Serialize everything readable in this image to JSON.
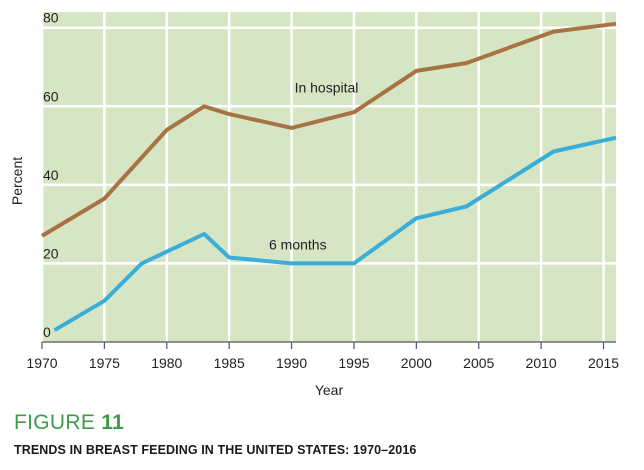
{
  "figure": {
    "label_prefix": "FIGURE",
    "label_number": "11",
    "title": "TRENDS IN BREAST FEEDING IN THE UNITED STATES: 1970–2016"
  },
  "chart_data": {
    "type": "line",
    "xlabel": "Year",
    "ylabel": "Percent",
    "xlim": [
      1970,
      2016
    ],
    "ylim": [
      0,
      84
    ],
    "x_ticks": [
      "1970",
      "1975",
      "1980",
      "1985",
      "1990",
      "1995",
      "2000",
      "2005",
      "2010",
      "2015"
    ],
    "y_ticks": [
      "0",
      "20",
      "40",
      "60",
      "80"
    ],
    "grid": true,
    "background_color": "#d6e6c4",
    "grid_color": "#ffffff",
    "series": [
      {
        "name": "In hospital",
        "color": "#a87344",
        "x": [
          1970,
          1975,
          1980,
          1983,
          1985,
          1990,
          1995,
          2000,
          2004,
          2011,
          2016
        ],
        "y": [
          27,
          36.5,
          54,
          60,
          58,
          54.5,
          58.5,
          69,
          71,
          79,
          81
        ]
      },
      {
        "name": "6 months",
        "color": "#3aaed8",
        "x": [
          1971,
          1975,
          1978,
          1983,
          1985,
          1990,
          1995,
          2000,
          2004,
          2011,
          2016
        ],
        "y": [
          3,
          10.5,
          20,
          27.5,
          21.5,
          20,
          20,
          31.5,
          34.5,
          48.5,
          52
        ]
      }
    ]
  }
}
